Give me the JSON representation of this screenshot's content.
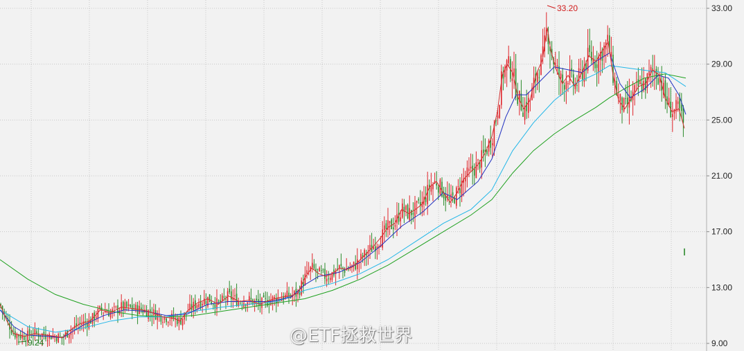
{
  "chart_data": {
    "type": "candlestick",
    "y_axis": {
      "position": "right",
      "ticks": [
        "33.00",
        "29.00",
        "25.00",
        "21.00",
        "17.00",
        "13.00",
        "9.00"
      ],
      "range": [
        9.0,
        33.0
      ]
    },
    "grid": true,
    "colors": {
      "up": "#e0242a",
      "down": "#2a8a2a",
      "ma_fast": "#d23030",
      "ma_mid": "#2030c0",
      "ma_slow": "#21b6e8",
      "ma_long": "#1ea01e"
    },
    "price_path": [
      [
        0,
        11.8
      ],
      [
        10,
        10.6
      ],
      [
        20,
        9.7
      ],
      [
        35,
        9.5
      ],
      [
        50,
        9.7
      ],
      [
        65,
        9.6
      ],
      [
        80,
        9.5
      ],
      [
        90,
        9.4
      ],
      [
        100,
        9.9
      ],
      [
        115,
        10.4
      ],
      [
        130,
        10.6
      ],
      [
        145,
        11.4
      ],
      [
        160,
        11.2
      ],
      [
        175,
        11.6
      ],
      [
        190,
        11.5
      ],
      [
        205,
        11.4
      ],
      [
        220,
        11.2
      ],
      [
        235,
        10.9
      ],
      [
        250,
        10.8
      ],
      [
        260,
        10.6
      ],
      [
        270,
        11.3
      ],
      [
        285,
        11.9
      ],
      [
        300,
        12.2
      ],
      [
        315,
        11.8
      ],
      [
        330,
        12.4
      ],
      [
        345,
        12.0
      ],
      [
        360,
        12.1
      ],
      [
        375,
        11.8
      ],
      [
        390,
        12.1
      ],
      [
        405,
        12.3
      ],
      [
        420,
        12.4
      ],
      [
        430,
        12.6
      ],
      [
        440,
        13.7
      ],
      [
        450,
        14.4
      ],
      [
        460,
        14.0
      ],
      [
        470,
        13.8
      ],
      [
        480,
        14.0
      ],
      [
        490,
        14.4
      ],
      [
        500,
        14.3
      ],
      [
        510,
        14.5
      ],
      [
        520,
        15.0
      ],
      [
        530,
        15.5
      ],
      [
        540,
        16.0
      ],
      [
        550,
        16.6
      ],
      [
        560,
        17.3
      ],
      [
        570,
        17.6
      ],
      [
        580,
        18.6
      ],
      [
        590,
        18.3
      ],
      [
        600,
        18.6
      ],
      [
        610,
        19.0
      ],
      [
        620,
        20.2
      ],
      [
        630,
        20.6
      ],
      [
        640,
        19.8
      ],
      [
        650,
        19.1
      ],
      [
        660,
        19.8
      ],
      [
        670,
        20.8
      ],
      [
        680,
        21.3
      ],
      [
        690,
        21.8
      ],
      [
        700,
        22.6
      ],
      [
        710,
        23.8
      ],
      [
        718,
        25.6
      ],
      [
        725,
        28.2
      ],
      [
        732,
        29.0
      ],
      [
        740,
        28.4
      ],
      [
        748,
        26.6
      ],
      [
        756,
        25.8
      ],
      [
        765,
        26.4
      ],
      [
        775,
        28.4
      ],
      [
        783,
        29.3
      ],
      [
        790,
        31.6
      ],
      [
        795,
        30.0
      ],
      [
        803,
        28.6
      ],
      [
        812,
        27.6
      ],
      [
        820,
        28.2
      ],
      [
        830,
        27.4
      ],
      [
        840,
        28.4
      ],
      [
        850,
        29.6
      ],
      [
        860,
        29.2
      ],
      [
        870,
        30.0
      ],
      [
        878,
        30.6
      ],
      [
        885,
        28.2
      ],
      [
        893,
        26.4
      ],
      [
        902,
        25.8
      ],
      [
        912,
        26.6
      ],
      [
        922,
        27.4
      ],
      [
        932,
        27.6
      ],
      [
        942,
        28.6
      ],
      [
        952,
        28.2
      ],
      [
        960,
        26.6
      ],
      [
        970,
        25.6
      ],
      [
        980,
        25.8
      ],
      [
        988,
        24.4
      ]
    ],
    "moving_averages": {
      "ma_long": [
        [
          0,
          15.0
        ],
        [
          40,
          13.6
        ],
        [
          80,
          12.5
        ],
        [
          120,
          11.8
        ],
        [
          160,
          11.3
        ],
        [
          200,
          11.0
        ],
        [
          240,
          10.9
        ],
        [
          280,
          11.0
        ],
        [
          320,
          11.3
        ],
        [
          360,
          11.6
        ],
        [
          400,
          11.9
        ],
        [
          440,
          12.2
        ],
        [
          480,
          12.8
        ],
        [
          520,
          13.6
        ],
        [
          560,
          14.6
        ],
        [
          600,
          15.8
        ],
        [
          640,
          17.0
        ],
        [
          680,
          18.2
        ],
        [
          710,
          19.3
        ],
        [
          740,
          21.2
        ],
        [
          770,
          22.8
        ],
        [
          800,
          24.0
        ],
        [
          830,
          25.0
        ],
        [
          860,
          25.9
        ],
        [
          880,
          26.6
        ],
        [
          900,
          27.2
        ],
        [
          930,
          28.0
        ],
        [
          960,
          28.3
        ],
        [
          990,
          28.0
        ]
      ],
      "ma_slow": [
        [
          0,
          11.4
        ],
        [
          40,
          10.2
        ],
        [
          80,
          9.8
        ],
        [
          120,
          10.1
        ],
        [
          160,
          10.6
        ],
        [
          200,
          10.9
        ],
        [
          240,
          10.9
        ],
        [
          280,
          11.3
        ],
        [
          320,
          11.6
        ],
        [
          360,
          11.8
        ],
        [
          400,
          12.0
        ],
        [
          440,
          12.8
        ],
        [
          480,
          13.3
        ],
        [
          520,
          14.0
        ],
        [
          560,
          15.0
        ],
        [
          600,
          16.3
        ],
        [
          640,
          17.6
        ],
        [
          680,
          18.6
        ],
        [
          710,
          20.0
        ],
        [
          740,
          22.8
        ],
        [
          770,
          24.8
        ],
        [
          800,
          26.4
        ],
        [
          830,
          27.6
        ],
        [
          860,
          28.3
        ],
        [
          880,
          28.9
        ],
        [
          910,
          28.7
        ],
        [
          940,
          28.5
        ],
        [
          960,
          28.4
        ],
        [
          990,
          27.4
        ]
      ],
      "ma_mid": [
        [
          0,
          11.4
        ],
        [
          20,
          10.2
        ],
        [
          40,
          9.6
        ],
        [
          70,
          9.5
        ],
        [
          90,
          9.4
        ],
        [
          120,
          10.3
        ],
        [
          150,
          11.0
        ],
        [
          180,
          11.4
        ],
        [
          210,
          11.3
        ],
        [
          240,
          11.0
        ],
        [
          270,
          11.1
        ],
        [
          300,
          11.8
        ],
        [
          330,
          12.0
        ],
        [
          360,
          12.0
        ],
        [
          390,
          12.0
        ],
        [
          420,
          12.3
        ],
        [
          440,
          13.2
        ],
        [
          460,
          13.8
        ],
        [
          490,
          14.1
        ],
        [
          520,
          14.8
        ],
        [
          550,
          16.0
        ],
        [
          580,
          17.4
        ],
        [
          610,
          18.4
        ],
        [
          640,
          19.8
        ],
        [
          660,
          19.3
        ],
        [
          690,
          20.6
        ],
        [
          710,
          22.2
        ],
        [
          730,
          25.2
        ],
        [
          745,
          26.8
        ],
        [
          760,
          26.8
        ],
        [
          780,
          27.8
        ],
        [
          800,
          28.8
        ],
        [
          820,
          28.6
        ],
        [
          840,
          28.4
        ],
        [
          860,
          29.2
        ],
        [
          880,
          29.8
        ],
        [
          895,
          27.6
        ],
        [
          910,
          26.6
        ],
        [
          930,
          27.2
        ],
        [
          950,
          28.2
        ],
        [
          965,
          28.0
        ],
        [
          980,
          26.8
        ],
        [
          990,
          25.4
        ]
      ]
    },
    "annotations": [
      {
        "label": "33.20",
        "x_index": 790,
        "y": 33.2,
        "color": "#d11c1c"
      },
      {
        "label": "9.24",
        "x_index": 30,
        "y": 9.24,
        "color": "#1d7a1d"
      }
    ],
    "stray_bar": {
      "x_index": 988,
      "y": [
        15.3,
        15.8
      ]
    }
  },
  "watermark": {
    "text": "@ETF拯救世界"
  }
}
